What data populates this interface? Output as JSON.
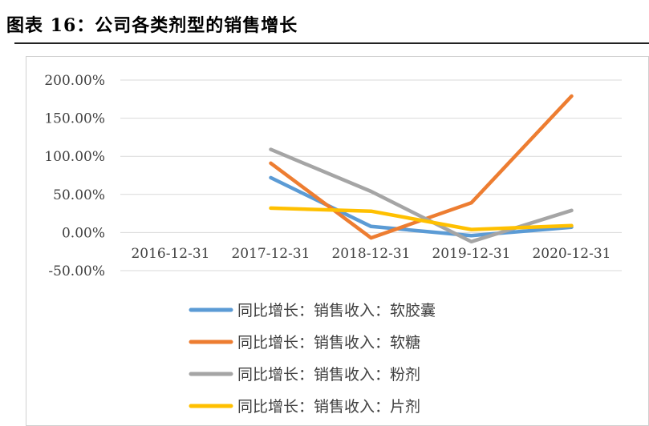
{
  "header": {
    "title": "图表 16：公司各类剂型的销售增长"
  },
  "chart_data": {
    "type": "line",
    "title": "",
    "xlabel": "",
    "ylabel": "",
    "categories": [
      "2016-12-31",
      "2017-12-31",
      "2018-12-31",
      "2019-12-31",
      "2020-12-31"
    ],
    "ylim": [
      -50,
      200
    ],
    "yticks": [
      200,
      150,
      100,
      50,
      0,
      -50
    ],
    "ytick_labels": [
      "200.00%",
      "150.00%",
      "100.00%",
      "50.00%",
      "0.00%",
      "-50.00%"
    ],
    "grid": true,
    "legend_position": "bottom",
    "series": [
      {
        "name": "同比增长：销售收入：软胶囊",
        "color": "#5B9BD5",
        "values": [
          null,
          72,
          8,
          -4,
          7
        ]
      },
      {
        "name": "同比增长：销售收入：软糖",
        "color": "#ED7D31",
        "values": [
          null,
          91,
          -7,
          39,
          179
        ]
      },
      {
        "name": "同比增长：销售收入：粉剂",
        "color": "#A5A5A5",
        "values": [
          null,
          109,
          54,
          -12,
          29
        ]
      },
      {
        "name": "同比增长：销售收入：片剂",
        "color": "#FFC000",
        "values": [
          null,
          32,
          28,
          4,
          9
        ]
      }
    ]
  }
}
